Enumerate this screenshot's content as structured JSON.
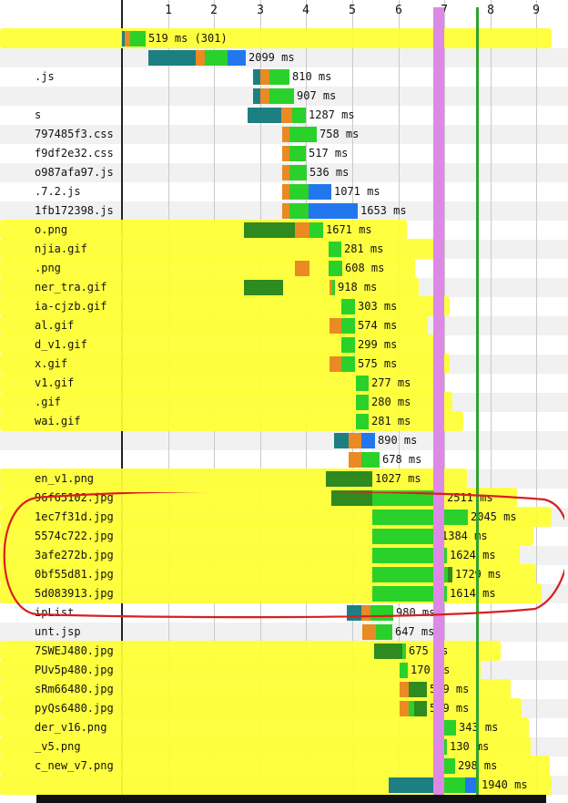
{
  "timeline": {
    "ticks": [
      "1",
      "2",
      "3",
      "4",
      "5",
      "6",
      "7",
      "8",
      "9"
    ],
    "tick_positions": [
      1,
      2,
      3,
      4,
      5,
      6,
      7,
      8,
      9
    ],
    "markers": [
      {
        "name": "dom-content-loaded-line",
        "at": 6.88,
        "color": "#dd8ae6"
      },
      {
        "name": "onload-line",
        "at": 7.7,
        "color": "#2ea32e"
      }
    ]
  },
  "colors": {
    "dns": "#1e7f82",
    "connect": "#e98a23",
    "ssl": "#8a3ed1",
    "ttfb": "#2ad12a",
    "download": "#2277ee",
    "darkgreen": "#2f8a1f",
    "highlight": "#ffff33",
    "annotation": "#d72020"
  },
  "requests": [
    {
      "name": "",
      "duration": "519 ms (301)",
      "hl": true,
      "segs": [
        [
          "dns",
          0,
          0.05
        ],
        [
          "connect",
          0.05,
          0.18
        ],
        [
          "ttfb",
          0.18,
          0.52
        ]
      ]
    },
    {
      "name": "",
      "duration": "2099 ms",
      "hl": false,
      "segs": [
        [
          "dns",
          0.58,
          1.6
        ],
        [
          "connect",
          1.6,
          1.8
        ],
        [
          "ttfb",
          1.8,
          2.3
        ],
        [
          "download",
          2.3,
          2.68
        ]
      ]
    },
    {
      "name": ".js",
      "duration": "810 ms",
      "hl": false,
      "segs": [
        [
          "dns",
          2.84,
          3.0
        ],
        [
          "connect",
          3.0,
          3.2
        ],
        [
          "ttfb",
          3.2,
          3.64
        ]
      ]
    },
    {
      "name": "",
      "duration": "907 ms",
      "hl": false,
      "segs": [
        [
          "dns",
          2.84,
          3.0
        ],
        [
          "connect",
          3.0,
          3.2
        ],
        [
          "ttfb",
          3.2,
          3.74
        ]
      ]
    },
    {
      "name": "s",
      "duration": "1287 ms",
      "hl": false,
      "segs": [
        [
          "dns",
          2.72,
          3.45
        ],
        [
          "connect",
          3.45,
          3.7
        ],
        [
          "ttfb",
          3.7,
          4.0
        ]
      ]
    },
    {
      "name": "797485f3.css",
      "duration": "758 ms",
      "hl": false,
      "segs": [
        [
          "connect",
          3.47,
          3.64
        ],
        [
          "ttfb",
          3.64,
          4.23
        ]
      ]
    },
    {
      "name": "f9df2e32.css",
      "duration": "517 ms",
      "hl": false,
      "segs": [
        [
          "connect",
          3.47,
          3.64
        ],
        [
          "ttfb",
          3.64,
          3.99
        ]
      ]
    },
    {
      "name": "o987afa97.js",
      "duration": "536 ms",
      "hl": false,
      "segs": [
        [
          "connect",
          3.47,
          3.64
        ],
        [
          "ttfb",
          3.64,
          4.01
        ]
      ]
    },
    {
      "name": ".7.2.js",
      "duration": "1071 ms",
      "hl": false,
      "segs": [
        [
          "connect",
          3.47,
          3.64
        ],
        [
          "ttfb",
          3.64,
          4.05
        ],
        [
          "download",
          4.05,
          4.55
        ]
      ]
    },
    {
      "name": "1fb172398.js",
      "duration": "1653 ms",
      "hl": false,
      "segs": [
        [
          "connect",
          3.47,
          3.64
        ],
        [
          "ttfb",
          3.64,
          4.05
        ],
        [
          "download",
          4.05,
          5.12
        ]
      ]
    },
    {
      "name": "o.png",
      "duration": "1671 ms",
      "hl": true,
      "segs": [
        [
          "darkgreen",
          2.65,
          3.75
        ],
        [
          "connect",
          3.75,
          4.08
        ],
        [
          "ttfb",
          4.08,
          4.36
        ]
      ]
    },
    {
      "name": "njia.gif",
      "duration": "281 ms",
      "hl": true,
      "segs": [
        [
          "ttfb",
          4.48,
          4.76
        ]
      ]
    },
    {
      "name": ".png",
      "duration": "608 ms",
      "hl": true,
      "segs": [
        [
          "connect",
          3.75,
          4.08
        ],
        [
          "ttfb",
          4.48,
          4.78
        ]
      ]
    },
    {
      "name": "ner_tra.gif",
      "duration": "918 ms",
      "hl": true,
      "segs": [
        [
          "darkgreen",
          2.65,
          3.5
        ],
        [
          "connect",
          4.5,
          4.56
        ],
        [
          "ttfb",
          4.56,
          4.63
        ]
      ]
    },
    {
      "name": "ia-cjzb.gif",
      "duration": "303 ms",
      "hl": true,
      "segs": [
        [
          "ttfb",
          4.76,
          5.06
        ]
      ]
    },
    {
      "name": "al.gif",
      "duration": "574 ms",
      "hl": true,
      "segs": [
        [
          "connect",
          4.5,
          4.76
        ],
        [
          "ttfb",
          4.76,
          5.06
        ]
      ]
    },
    {
      "name": "d_v1.gif",
      "duration": "299 ms",
      "hl": true,
      "segs": [
        [
          "ttfb",
          4.76,
          5.06
        ]
      ]
    },
    {
      "name": "x.gif",
      "duration": "575 ms",
      "hl": true,
      "segs": [
        [
          "connect",
          4.5,
          4.76
        ],
        [
          "ttfb",
          4.76,
          5.06
        ]
      ]
    },
    {
      "name": "v1.gif",
      "duration": "277 ms",
      "hl": true,
      "segs": [
        [
          "ttfb",
          5.08,
          5.36
        ]
      ]
    },
    {
      "name": ".gif",
      "duration": "280 ms",
      "hl": true,
      "segs": [
        [
          "ttfb",
          5.08,
          5.36
        ]
      ]
    },
    {
      "name": "wai.gif",
      "duration": "281 ms",
      "hl": true,
      "segs": [
        [
          "ttfb",
          5.08,
          5.36
        ]
      ]
    },
    {
      "name": "",
      "duration": "890 ms",
      "hl": false,
      "segs": [
        [
          "dns",
          4.6,
          4.92
        ],
        [
          "connect",
          4.92,
          5.2
        ],
        [
          "download",
          5.2,
          5.5
        ]
      ]
    },
    {
      "name": "",
      "duration": "678 ms",
      "hl": false,
      "segs": [
        [
          "connect",
          4.92,
          5.2
        ],
        [
          "ttfb",
          5.2,
          5.6
        ]
      ]
    },
    {
      "name": "en_v1.png",
      "duration": "1027 ms",
      "hl": true,
      "segs": [
        [
          "darkgreen",
          4.42,
          5.44
        ]
      ]
    },
    {
      "name": "96f65102.jpg",
      "duration": "2511 ms",
      "hl": true,
      "segs": [
        [
          "darkgreen",
          4.55,
          5.44
        ],
        [
          "ttfb",
          5.44,
          7.0
        ]
      ]
    },
    {
      "name": "1ec7f31d.jpg",
      "duration": "2045 ms",
      "hl": true,
      "segs": [
        [
          "ttfb",
          5.44,
          7.5
        ]
      ]
    },
    {
      "name": "5574c722.jpg",
      "duration": "1384 ms",
      "hl": true,
      "segs": [
        [
          "ttfb",
          5.44,
          6.83
        ],
        [
          "download",
          6.83,
          6.88
        ]
      ]
    },
    {
      "name": "3afe272b.jpg",
      "duration": "1624 ms",
      "hl": true,
      "segs": [
        [
          "ttfb",
          5.44,
          7.06
        ]
      ]
    },
    {
      "name": "0bf55d81.jpg",
      "duration": "1729 ms",
      "hl": true,
      "segs": [
        [
          "ttfb",
          5.44,
          7.08
        ],
        [
          "darkgreen",
          7.08,
          7.17
        ]
      ]
    },
    {
      "name": "5d083913.jpg",
      "duration": "1614 ms",
      "hl": true,
      "segs": [
        [
          "ttfb",
          5.44,
          7.05
        ]
      ]
    },
    {
      "name": "ipList",
      "duration": "980 ms",
      "hl": false,
      "segs": [
        [
          "dns",
          4.88,
          5.2
        ],
        [
          "connect",
          5.2,
          5.4
        ],
        [
          "ttfb",
          5.4,
          5.88
        ]
      ]
    },
    {
      "name": "unt.jsp",
      "duration": "647 ms",
      "hl": false,
      "segs": [
        [
          "connect",
          5.22,
          5.52
        ],
        [
          "ttfb",
          5.52,
          5.87
        ]
      ]
    },
    {
      "name": "7SWEJ480.jpg",
      "duration": "675 ms",
      "hl": true,
      "segs": [
        [
          "darkgreen",
          5.48,
          6.08
        ],
        [
          "ttfb",
          6.08,
          6.16
        ]
      ]
    },
    {
      "name": "PUv5p480.jpg",
      "duration": "170 ms",
      "hl": true,
      "segs": [
        [
          "ttfb",
          6.03,
          6.2
        ]
      ]
    },
    {
      "name": "sRm66480.jpg",
      "duration": "599 ms",
      "hl": true,
      "segs": [
        [
          "connect",
          6.03,
          6.22
        ],
        [
          "darkgreen",
          6.22,
          6.62
        ]
      ]
    },
    {
      "name": "pyQs6480.jpg",
      "duration": "599 ms",
      "hl": true,
      "segs": [
        [
          "connect",
          6.03,
          6.22
        ],
        [
          "ttfb",
          6.22,
          6.34
        ],
        [
          "darkgreen",
          6.34,
          6.62
        ]
      ]
    },
    {
      "name": "der_v16.png",
      "duration": "343 ms",
      "hl": true,
      "segs": [
        [
          "ttfb",
          6.93,
          7.26
        ]
      ]
    },
    {
      "name": "_v5.png",
      "duration": "130 ms",
      "hl": true,
      "segs": [
        [
          "ttfb",
          6.93,
          7.06
        ]
      ]
    },
    {
      "name": "c_new_v7.png",
      "duration": "298 ms",
      "hl": true,
      "segs": [
        [
          "ttfb",
          6.93,
          7.23
        ]
      ]
    },
    {
      "name": "",
      "duration": "1940 ms",
      "hl": true,
      "segs": [
        [
          "dns",
          5.8,
          6.75
        ],
        [
          "connect",
          6.75,
          6.85
        ],
        [
          "ttfb",
          6.85,
          7.45
        ],
        [
          "download",
          7.45,
          7.75
        ]
      ]
    }
  ]
}
